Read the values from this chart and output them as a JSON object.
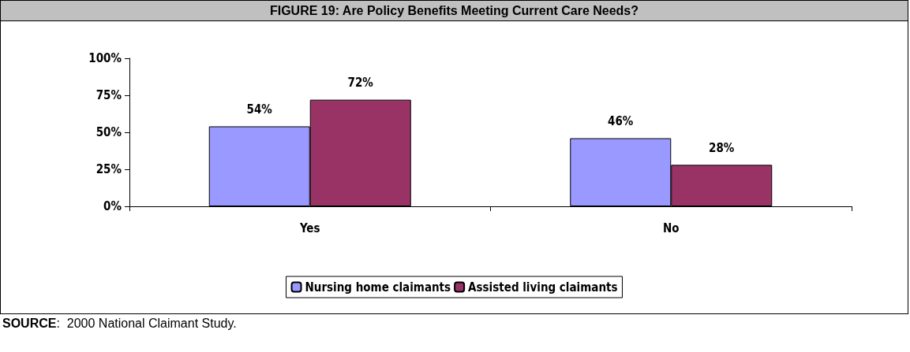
{
  "chart_data": {
    "type": "bar",
    "title": "FIGURE 19: Are Policy Benefits Meeting Current Care Needs?",
    "categories": [
      "Yes",
      "No"
    ],
    "series": [
      {
        "name": "Nursing home claimants",
        "color": "#9999ff",
        "values": [
          54,
          46
        ],
        "value_labels": [
          "54%",
          "46%"
        ]
      },
      {
        "name": "Assisted living claimants",
        "color": "#993366",
        "values": [
          72,
          28
        ],
        "value_labels": [
          "72%",
          "28%"
        ]
      }
    ],
    "ylim": [
      0,
      100
    ],
    "yticks": [
      {
        "value": 0,
        "label": "0%"
      },
      {
        "value": 25,
        "label": "25%"
      },
      {
        "value": 50,
        "label": "50%"
      },
      {
        "value": 75,
        "label": "75%"
      },
      {
        "value": 100,
        "label": "100%"
      }
    ],
    "legend": "bottom",
    "annotations": [
      "SOURCE:  2000 National Claimant Study."
    ]
  }
}
